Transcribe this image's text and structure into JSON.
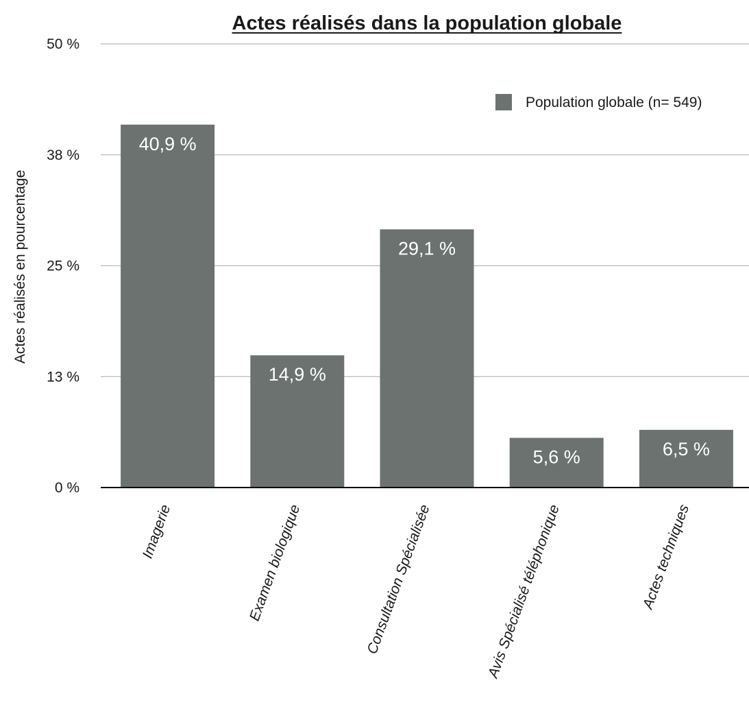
{
  "chart_data": {
    "type": "bar",
    "title": "Actes réalisés dans la population globale",
    "xlabel": "",
    "ylabel": "Actes réalisés en pourcentage",
    "categories": [
      "Imagerie",
      "Examen biologique",
      "Consultation Spécialisée",
      "Avis Spécialisé téléphonique",
      "Actes techniques"
    ],
    "series": [
      {
        "name": "Population globale (n= 549)",
        "values": [
          40.9,
          14.9,
          29.1,
          5.6,
          6.5
        ],
        "data_labels": [
          "40,9 %",
          "14,9 %",
          "29,1 %",
          "5,6 %",
          "6,5 %"
        ],
        "color": "#6c726f"
      }
    ],
    "ylim": [
      0,
      50
    ],
    "yticks": [
      0,
      12.5,
      25,
      37.5,
      50
    ],
    "ytick_labels": [
      "0 %",
      "13 %",
      "25 %",
      "38 %",
      "50 %"
    ],
    "grid": true,
    "legend_position": "top-right"
  }
}
